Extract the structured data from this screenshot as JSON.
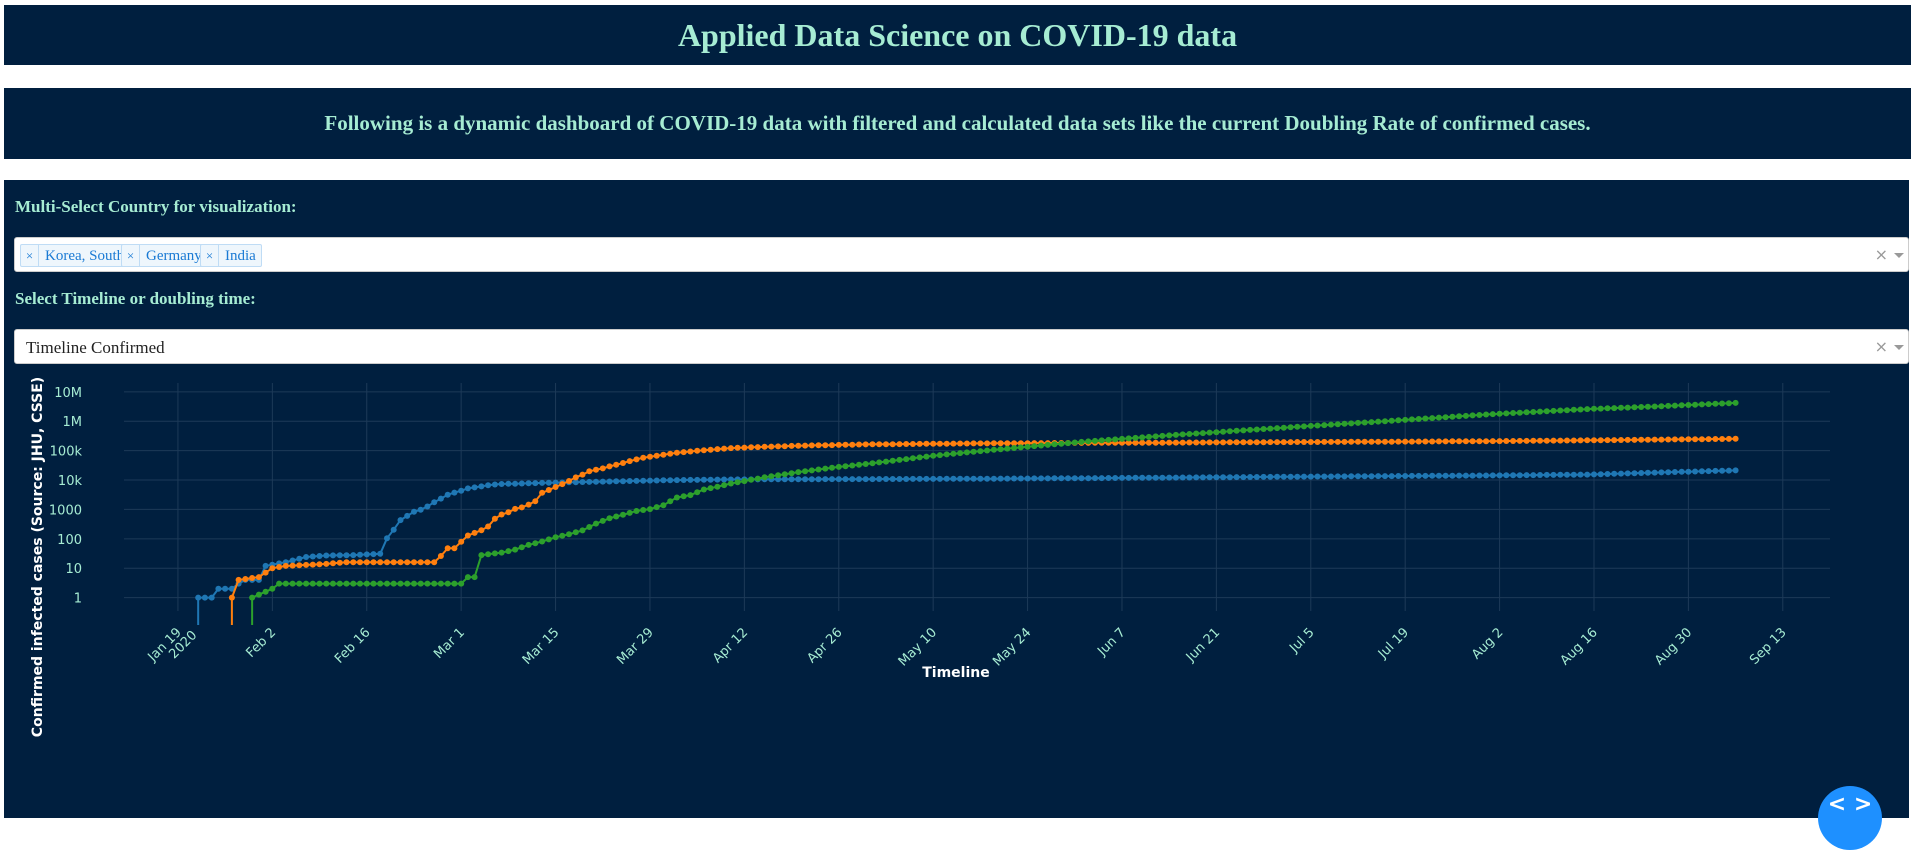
{
  "header": {
    "title": "Applied Data Science on COVID-19 data",
    "subtitle": "Following is a dynamic dashboard of COVID-19 data with filtered and calculated data sets like the current Doubling Rate of confirmed cases."
  },
  "controls": {
    "country_label": "Multi-Select Country for visualization:",
    "selected_countries": [
      "Korea, South",
      "Germany",
      "India"
    ],
    "remove_tag_glyph": "×",
    "clear_glyph": "×",
    "timeline_label": "Select Timeline or doubling time:",
    "timeline_value": "Timeline Confirmed"
  },
  "theme": {
    "panel_bg": "#001f3f",
    "text_accent": "#a6ecd3",
    "tag_text": "#1a7ad4",
    "fab_color": "#1e90ff"
  },
  "chart_data": {
    "type": "line",
    "title": "",
    "xlabel": "Timeline",
    "ylabel": "Confirmed infected cases (Source: JHU, CSSE)",
    "yscale": "log",
    "ylim": [
      1,
      10000000
    ],
    "xlim": [
      "2020-01-11",
      "2020-09-20"
    ],
    "grid": true,
    "legend_position": "top-right",
    "x_ticks": [
      {
        "date": "2020-01-19",
        "label": [
          "Jan 19",
          "2020"
        ]
      },
      {
        "date": "2020-02-02",
        "label": [
          "Feb 2"
        ]
      },
      {
        "date": "2020-02-16",
        "label": [
          "Feb 16"
        ]
      },
      {
        "date": "2020-03-01",
        "label": [
          "Mar 1"
        ]
      },
      {
        "date": "2020-03-15",
        "label": [
          "Mar 15"
        ]
      },
      {
        "date": "2020-03-29",
        "label": [
          "Mar 29"
        ]
      },
      {
        "date": "2020-04-12",
        "label": [
          "Apr 12"
        ]
      },
      {
        "date": "2020-04-26",
        "label": [
          "Apr 26"
        ]
      },
      {
        "date": "2020-05-10",
        "label": [
          "May 10"
        ]
      },
      {
        "date": "2020-05-24",
        "label": [
          "May 24"
        ]
      },
      {
        "date": "2020-06-07",
        "label": [
          "Jun 7"
        ]
      },
      {
        "date": "2020-06-21",
        "label": [
          "Jun 21"
        ]
      },
      {
        "date": "2020-07-05",
        "label": [
          "Jul 5"
        ]
      },
      {
        "date": "2020-07-19",
        "label": [
          "Jul 19"
        ]
      },
      {
        "date": "2020-08-02",
        "label": [
          "Aug 2"
        ]
      },
      {
        "date": "2020-08-16",
        "label": [
          "Aug 16"
        ]
      },
      {
        "date": "2020-08-30",
        "label": [
          "Aug 30"
        ]
      },
      {
        "date": "2020-09-13",
        "label": [
          "Sep 13"
        ]
      }
    ],
    "y_ticks": [
      {
        "value": 1,
        "label": "1"
      },
      {
        "value": 10,
        "label": "10"
      },
      {
        "value": 100,
        "label": "100"
      },
      {
        "value": 1000,
        "label": "1000"
      },
      {
        "value": 10000,
        "label": "10k"
      },
      {
        "value": 100000,
        "label": "100k"
      },
      {
        "value": 1000000,
        "label": "1M"
      },
      {
        "value": 10000000,
        "label": "10M"
      }
    ],
    "series": [
      {
        "name": "Korea, South",
        "color": "#1f77b4",
        "points": [
          [
            "2020-01-22",
            1
          ],
          [
            "2020-01-24",
            1
          ],
          [
            "2020-01-25",
            2
          ],
          [
            "2020-01-27",
            2
          ],
          [
            "2020-01-28",
            3
          ],
          [
            "2020-01-29",
            4
          ],
          [
            "2020-01-31",
            4
          ],
          [
            "2020-02-01",
            12
          ],
          [
            "2020-02-04",
            16
          ],
          [
            "2020-02-07",
            24
          ],
          [
            "2020-02-10",
            27
          ],
          [
            "2020-02-14",
            28
          ],
          [
            "2020-02-18",
            31
          ],
          [
            "2020-02-19",
            104
          ],
          [
            "2020-02-20",
            204
          ],
          [
            "2020-02-21",
            433
          ],
          [
            "2020-02-22",
            602
          ],
          [
            "2020-02-23",
            833
          ],
          [
            "2020-02-24",
            977
          ],
          [
            "2020-02-25",
            1261
          ],
          [
            "2020-02-26",
            1766
          ],
          [
            "2020-02-27",
            2337
          ],
          [
            "2020-02-28",
            3150
          ],
          [
            "2020-02-29",
            3736
          ],
          [
            "2020-03-01",
            4335
          ],
          [
            "2020-03-02",
            5186
          ],
          [
            "2020-03-03",
            5621
          ],
          [
            "2020-03-04",
            6088
          ],
          [
            "2020-03-05",
            6593
          ],
          [
            "2020-03-06",
            7041
          ],
          [
            "2020-03-07",
            7314
          ],
          [
            "2020-03-08",
            7478
          ],
          [
            "2020-03-09",
            7513
          ],
          [
            "2020-03-12",
            7869
          ],
          [
            "2020-03-15",
            8162
          ],
          [
            "2020-03-20",
            8652
          ],
          [
            "2020-03-25",
            9137
          ],
          [
            "2020-04-01",
            9887
          ],
          [
            "2020-04-10",
            10450
          ],
          [
            "2020-04-20",
            10674
          ],
          [
            "2020-05-01",
            10780
          ],
          [
            "2020-05-15",
            11018
          ],
          [
            "2020-06-01",
            11541
          ],
          [
            "2020-06-15",
            12121
          ],
          [
            "2020-07-01",
            12904
          ],
          [
            "2020-07-15",
            13551
          ],
          [
            "2020-08-01",
            14336
          ],
          [
            "2020-08-15",
            15318
          ],
          [
            "2020-08-25",
            17945
          ],
          [
            "2020-09-06",
            21296
          ]
        ]
      },
      {
        "name": "Germany",
        "color": "#ff7f0e",
        "points": [
          [
            "2020-01-27",
            1
          ],
          [
            "2020-01-28",
            4
          ],
          [
            "2020-01-31",
            5
          ],
          [
            "2020-02-02",
            10
          ],
          [
            "2020-02-04",
            12
          ],
          [
            "2020-02-10",
            14
          ],
          [
            "2020-02-13",
            16
          ],
          [
            "2020-02-20",
            16
          ],
          [
            "2020-02-26",
            16
          ],
          [
            "2020-02-27",
            26
          ],
          [
            "2020-02-28",
            48
          ],
          [
            "2020-02-29",
            48
          ],
          [
            "2020-03-01",
            79
          ],
          [
            "2020-03-02",
            130
          ],
          [
            "2020-03-03",
            159
          ],
          [
            "2020-03-04",
            196
          ],
          [
            "2020-03-05",
            262
          ],
          [
            "2020-03-06",
            482
          ],
          [
            "2020-03-07",
            670
          ],
          [
            "2020-03-08",
            799
          ],
          [
            "2020-03-09",
            1040
          ],
          [
            "2020-03-10",
            1176
          ],
          [
            "2020-03-11",
            1457
          ],
          [
            "2020-03-12",
            1908
          ],
          [
            "2020-03-13",
            3675
          ],
          [
            "2020-03-14",
            4585
          ],
          [
            "2020-03-15",
            5795
          ],
          [
            "2020-03-16",
            7272
          ],
          [
            "2020-03-17",
            9257
          ],
          [
            "2020-03-18",
            12327
          ],
          [
            "2020-03-19",
            15320
          ],
          [
            "2020-03-20",
            19848
          ],
          [
            "2020-03-21",
            22213
          ],
          [
            "2020-03-22",
            24873
          ],
          [
            "2020-03-23",
            29056
          ],
          [
            "2020-03-24",
            32986
          ],
          [
            "2020-03-26",
            43938
          ],
          [
            "2020-03-28",
            57695
          ],
          [
            "2020-03-30",
            66885
          ],
          [
            "2020-04-02",
            84794
          ],
          [
            "2020-04-06",
            103374
          ],
          [
            "2020-04-10",
            122171
          ],
          [
            "2020-04-15",
            134753
          ],
          [
            "2020-04-20",
            147065
          ],
          [
            "2020-04-30",
            163009
          ],
          [
            "2020-05-15",
            175233
          ],
          [
            "2020-06-01",
            183494
          ],
          [
            "2020-06-15",
            187423
          ],
          [
            "2020-07-01",
            195418
          ],
          [
            "2020-07-15",
            200890
          ],
          [
            "2020-08-01",
            210399
          ],
          [
            "2020-08-15",
            224014
          ],
          [
            "2020-08-25",
            236429
          ],
          [
            "2020-09-06",
            252298
          ]
        ]
      },
      {
        "name": "India",
        "color": "#2ca02c",
        "points": [
          [
            "2020-01-30",
            1
          ],
          [
            "2020-02-02",
            2
          ],
          [
            "2020-02-03",
            3
          ],
          [
            "2020-02-10",
            3
          ],
          [
            "2020-02-20",
            3
          ],
          [
            "2020-03-01",
            3
          ],
          [
            "2020-03-02",
            5
          ],
          [
            "2020-03-03",
            5
          ],
          [
            "2020-03-04",
            28
          ],
          [
            "2020-03-05",
            30
          ],
          [
            "2020-03-07",
            34
          ],
          [
            "2020-03-09",
            43
          ],
          [
            "2020-03-11",
            62
          ],
          [
            "2020-03-13",
            81
          ],
          [
            "2020-03-15",
            113
          ],
          [
            "2020-03-17",
            142
          ],
          [
            "2020-03-19",
            194
          ],
          [
            "2020-03-21",
            330
          ],
          [
            "2020-03-23",
            499
          ],
          [
            "2020-03-25",
            657
          ],
          [
            "2020-03-27",
            887
          ],
          [
            "2020-03-29",
            1024
          ],
          [
            "2020-03-31",
            1397
          ],
          [
            "2020-04-02",
            2543
          ],
          [
            "2020-04-04",
            3082
          ],
          [
            "2020-04-06",
            4778
          ],
          [
            "2020-04-08",
            5916
          ],
          [
            "2020-04-10",
            7598
          ],
          [
            "2020-04-12",
            9205
          ],
          [
            "2020-04-15",
            12370
          ],
          [
            "2020-04-20",
            18539
          ],
          [
            "2020-04-25",
            26283
          ],
          [
            "2020-05-01",
            37257
          ],
          [
            "2020-05-10",
            67161
          ],
          [
            "2020-05-20",
            112028
          ],
          [
            "2020-06-01",
            198370
          ],
          [
            "2020-06-15",
            343091
          ],
          [
            "2020-07-01",
            604641
          ],
          [
            "2020-07-15",
            970169
          ],
          [
            "2020-08-01",
            1750723
          ],
          [
            "2020-08-15",
            2589682
          ],
          [
            "2020-08-25",
            3167323
          ],
          [
            "2020-09-06",
            4204613
          ]
        ]
      }
    ]
  }
}
